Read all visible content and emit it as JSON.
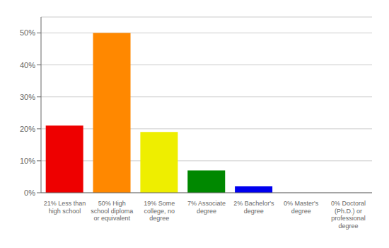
{
  "chart_data": {
    "type": "bar",
    "categories": [
      "21% Less than\nhigh school",
      "50% High\nschool diploma\nor equivalent",
      "19% Some\ncollege, no\ndegree",
      "7% Associate\ndegree",
      "2% Bachelor's\ndegree",
      "0% Master's\ndegree",
      "0% Doctoral\n(Ph.D.) or\nprofessional\ndegree"
    ],
    "values": [
      21,
      50,
      19,
      7,
      2,
      0,
      0
    ],
    "colors": [
      "#EE0000",
      "#FF8800",
      "#EEEE00",
      "#008800",
      "#0000EE",
      "#9900CC",
      "#EE00EE"
    ],
    "ylim": [
      0,
      55
    ],
    "yticks": [
      {
        "value": 0,
        "label": "0%"
      },
      {
        "value": 10,
        "label": "10%"
      },
      {
        "value": 20,
        "label": "20%"
      },
      {
        "value": 30,
        "label": "30%"
      },
      {
        "value": 40,
        "label": "40%"
      },
      {
        "value": 50,
        "label": "50%"
      }
    ],
    "grid": true
  }
}
